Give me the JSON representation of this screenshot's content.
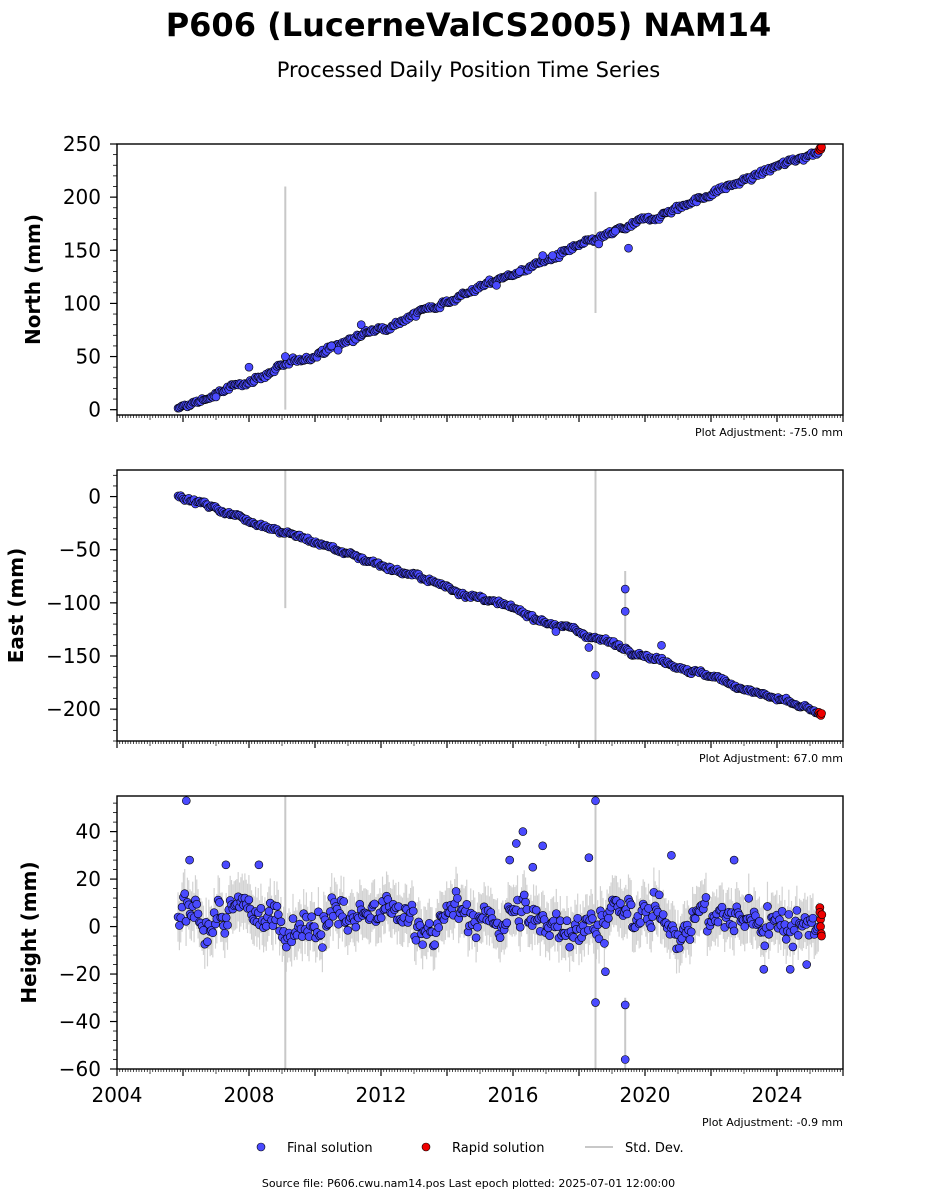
{
  "header": {
    "title": "P606 (LucerneValCS2005) NAM14",
    "subtitle": "Processed Daily Position Time Series"
  },
  "footer": {
    "source": "Source file: P606.cwu.nam14.pos  Last epoch plotted: 2025-07-01 12:00:00"
  },
  "legend": {
    "final": "Final solution",
    "rapid": "Rapid solution",
    "std": "Std. Dev."
  },
  "colors": {
    "final": "#4a4aff",
    "rapid": "#ee0000",
    "std": "#c8c8c8",
    "edge": "#000000"
  },
  "chart_data": [
    {
      "type": "scatter",
      "panel": "north",
      "ylabel": "North (mm)",
      "ylim": [
        -5,
        250
      ],
      "yticks": [
        0,
        50,
        100,
        150,
        200,
        250
      ],
      "xlim": [
        2004,
        2026
      ],
      "xticks": [],
      "adjustment": "Plot Adjustment: -75.0 mm",
      "final": {
        "start": [
          2005.85,
          0
        ],
        "end": [
          2025.25,
          244
        ],
        "scatter_mm": 2.2
      },
      "outliers": [
        [
          2007.0,
          12
        ],
        [
          2008.0,
          40
        ],
        [
          2009.1,
          50
        ],
        [
          2010.5,
          60
        ],
        [
          2010.7,
          56
        ],
        [
          2011.4,
          80
        ],
        [
          2015.5,
          117
        ],
        [
          2016.2,
          130
        ],
        [
          2016.9,
          145
        ],
        [
          2017.2,
          145
        ],
        [
          2018.6,
          156
        ],
        [
          2019.5,
          152
        ],
        [
          2019.1,
          168
        ]
      ],
      "std_spikes": [
        [
          2009.1,
          0,
          210
        ],
        [
          2018.5,
          91,
          205
        ]
      ],
      "rapid": [
        [
          2025.27,
          244
        ],
        [
          2025.3,
          246
        ],
        [
          2025.33,
          245
        ],
        [
          2025.35,
          247
        ]
      ]
    },
    {
      "type": "scatter",
      "panel": "east",
      "ylabel": "East (mm)",
      "ylim": [
        -230,
        25
      ],
      "yticks": [
        -200,
        -150,
        -100,
        -50,
        0
      ],
      "xlim": [
        2004,
        2026
      ],
      "xticks": [],
      "adjustment": "Plot Adjustment: 67.0 mm",
      "final": {
        "start": [
          2005.85,
          1
        ],
        "end": [
          2025.25,
          -204
        ],
        "scatter_mm": 1.8
      },
      "outliers": [
        [
          2017.3,
          -127
        ],
        [
          2018.3,
          -142
        ],
        [
          2018.5,
          -168
        ],
        [
          2019.4,
          -87
        ],
        [
          2019.4,
          -108
        ],
        [
          2020.5,
          -140
        ]
      ],
      "std_spikes": [
        [
          2009.1,
          -105,
          25
        ],
        [
          2018.5,
          -230,
          25
        ],
        [
          2019.4,
          -150,
          -70
        ]
      ],
      "rapid": [
        [
          2025.27,
          -203
        ],
        [
          2025.3,
          -205
        ],
        [
          2025.33,
          -206
        ],
        [
          2025.35,
          -204
        ]
      ]
    },
    {
      "type": "scatter",
      "panel": "height",
      "ylabel": "Height (mm)",
      "ylim": [
        -60,
        55
      ],
      "yticks": [
        -60,
        -40,
        -20,
        0,
        20,
        40
      ],
      "xlim": [
        2004,
        2026
      ],
      "xticks": [
        2004,
        2008,
        2012,
        2016,
        2020,
        2024
      ],
      "adjustment": "Plot Adjustment: -0.9 mm",
      "final": {
        "start": [
          2005.85,
          3
        ],
        "end": [
          2025.25,
          3
        ],
        "scatter_mm": 6.5
      },
      "outliers": [
        [
          2006.1,
          53
        ],
        [
          2006.2,
          28
        ],
        [
          2007.3,
          26
        ],
        [
          2008.3,
          26
        ],
        [
          2015.9,
          28
        ],
        [
          2016.1,
          35
        ],
        [
          2016.3,
          40
        ],
        [
          2016.6,
          25
        ],
        [
          2016.9,
          34
        ],
        [
          2018.3,
          29
        ],
        [
          2018.5,
          53
        ],
        [
          2018.5,
          -32
        ],
        [
          2018.8,
          -19
        ],
        [
          2019.4,
          -33
        ],
        [
          2019.4,
          -56
        ],
        [
          2020.8,
          30
        ],
        [
          2022.7,
          28
        ],
        [
          2023.6,
          -18
        ],
        [
          2024.4,
          -18
        ],
        [
          2024.9,
          -16
        ]
      ],
      "std_spikes": [
        [
          2009.1,
          -60,
          55
        ],
        [
          2018.5,
          -60,
          55
        ],
        [
          2019.4,
          -60,
          -30
        ]
      ],
      "rapid": [
        [
          2025.3,
          8
        ],
        [
          2025.3,
          6
        ],
        [
          2025.32,
          3
        ],
        [
          2025.32,
          0
        ],
        [
          2025.34,
          -3
        ],
        [
          2025.35,
          -4
        ],
        [
          2025.36,
          5
        ]
      ]
    }
  ]
}
